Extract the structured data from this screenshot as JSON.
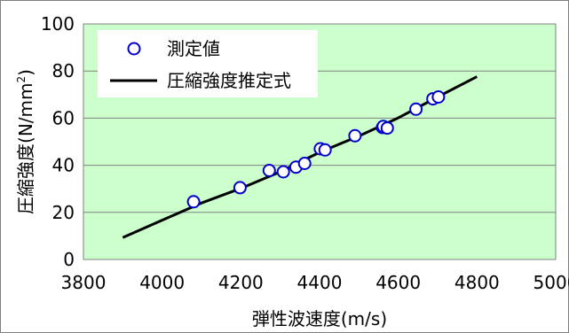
{
  "chart_data": {
    "type": "scatter",
    "title": "",
    "xlabel": "弾性波速度(m/s)",
    "ylabel": "圧縮強度(N/mm²)",
    "ylabel_parts": {
      "main": "圧縮強度(N/mm",
      "sup": "2",
      "close": ")"
    },
    "xlim": [
      3800,
      5000
    ],
    "ylim": [
      0,
      100
    ],
    "x_ticks": [
      3800,
      4000,
      4200,
      4400,
      4600,
      4800,
      5000
    ],
    "y_ticks": [
      0,
      20,
      40,
      60,
      80,
      100
    ],
    "grid": true,
    "plot_background": "#ccffcc",
    "legend_position": "top-left",
    "legend": [
      {
        "label": "測定値",
        "kind": "marker"
      },
      {
        "label": "圧縮強度推定式",
        "kind": "line"
      }
    ],
    "series": [
      {
        "name": "測定値",
        "kind": "scatter",
        "marker_color": "#0000cc",
        "marker_fill": "#ffffff",
        "points": [
          [
            4080,
            24.5
          ],
          [
            4198,
            30.5
          ],
          [
            4272,
            37.8
          ],
          [
            4308,
            37.2
          ],
          [
            4340,
            39.2
          ],
          [
            4362,
            40.8
          ],
          [
            4402,
            47.0
          ],
          [
            4414,
            46.5
          ],
          [
            4490,
            52.5
          ],
          [
            4560,
            56.0
          ],
          [
            4562,
            56.5
          ],
          [
            4572,
            55.8
          ],
          [
            4645,
            63.8
          ],
          [
            4688,
            68.2
          ],
          [
            4702,
            69.0
          ]
        ]
      },
      {
        "name": "圧縮強度推定式",
        "kind": "line",
        "line_color": "#000000",
        "points": [
          [
            3900,
            9.3
          ],
          [
            4000,
            16.7
          ],
          [
            4100,
            24.0
          ],
          [
            4200,
            30.2
          ],
          [
            4300,
            37.2
          ],
          [
            4400,
            45.5
          ],
          [
            4500,
            52.4
          ],
          [
            4600,
            60.1
          ],
          [
            4700,
            69.0
          ],
          [
            4800,
            77.6
          ]
        ]
      }
    ]
  }
}
